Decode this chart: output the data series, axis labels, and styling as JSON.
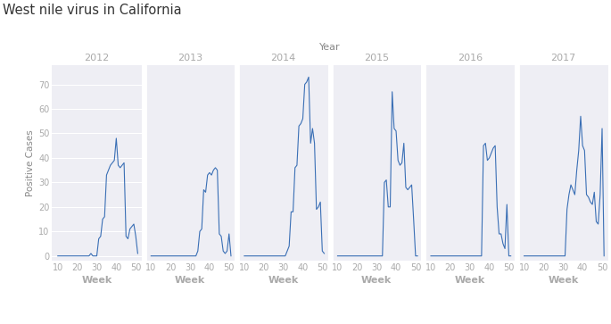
{
  "title": "West nile virus in California",
  "xlabel": "Year",
  "ylabel": "Positive Cases",
  "week_label": "Week",
  "background_color": "#eeeef4",
  "line_color": "#3a6fb5",
  "line_width": 0.8,
  "ylim": [
    -2,
    78
  ],
  "yticks": [
    0,
    10,
    20,
    30,
    40,
    50,
    60,
    70
  ],
  "xlim": [
    7,
    53
  ],
  "xticks": [
    10,
    20,
    30,
    40,
    50
  ],
  "years": [
    "2012",
    "2013",
    "2014",
    "2015",
    "2016",
    "2017"
  ],
  "data": {
    "2012": {
      "weeks": [
        10,
        11,
        12,
        13,
        14,
        15,
        16,
        17,
        18,
        19,
        20,
        21,
        22,
        23,
        24,
        25,
        26,
        27,
        28,
        29,
        30,
        31,
        32,
        33,
        34,
        35,
        36,
        37,
        38,
        39,
        40,
        41,
        42,
        43,
        44,
        45,
        46,
        47,
        48,
        49,
        50,
        51
      ],
      "cases": [
        0,
        0,
        0,
        0,
        0,
        0,
        0,
        0,
        0,
        0,
        0,
        0,
        0,
        0,
        0,
        0,
        0,
        1,
        0,
        0,
        0,
        7,
        8,
        15,
        16,
        33,
        35,
        37,
        38,
        39,
        48,
        37,
        36,
        37,
        38,
        8,
        7,
        11,
        12,
        13,
        8,
        1
      ]
    },
    "2013": {
      "weeks": [
        10,
        11,
        12,
        13,
        14,
        15,
        16,
        17,
        18,
        19,
        20,
        21,
        22,
        23,
        24,
        25,
        26,
        27,
        28,
        29,
        30,
        31,
        32,
        33,
        34,
        35,
        36,
        37,
        38,
        39,
        40,
        41,
        42,
        43,
        44,
        45,
        46,
        47,
        48,
        49,
        50,
        51
      ],
      "cases": [
        0,
        0,
        0,
        0,
        0,
        0,
        0,
        0,
        0,
        0,
        0,
        0,
        0,
        0,
        0,
        0,
        0,
        0,
        0,
        0,
        0,
        0,
        0,
        0,
        2,
        10,
        11,
        27,
        26,
        33,
        34,
        33,
        35,
        36,
        35,
        9,
        8,
        2,
        1,
        2,
        9,
        0
      ]
    },
    "2014": {
      "weeks": [
        10,
        11,
        12,
        13,
        14,
        15,
        16,
        17,
        18,
        19,
        20,
        21,
        22,
        23,
        24,
        25,
        26,
        27,
        28,
        29,
        30,
        31,
        32,
        33,
        34,
        35,
        36,
        37,
        38,
        39,
        40,
        41,
        42,
        43,
        44,
        45,
        46,
        47,
        48,
        49,
        50,
        51
      ],
      "cases": [
        0,
        0,
        0,
        0,
        0,
        0,
        0,
        0,
        0,
        0,
        0,
        0,
        0,
        0,
        0,
        0,
        0,
        0,
        0,
        0,
        0,
        0,
        2,
        4,
        18,
        18,
        36,
        37,
        53,
        54,
        56,
        70,
        71,
        73,
        46,
        52,
        46,
        19,
        20,
        22,
        2,
        1
      ]
    },
    "2015": {
      "weeks": [
        10,
        11,
        12,
        13,
        14,
        15,
        16,
        17,
        18,
        19,
        20,
        21,
        22,
        23,
        24,
        25,
        26,
        27,
        28,
        29,
        30,
        31,
        32,
        33,
        34,
        35,
        36,
        37,
        38,
        39,
        40,
        41,
        42,
        43,
        44,
        45,
        46,
        47,
        48,
        49,
        50,
        51
      ],
      "cases": [
        0,
        0,
        0,
        0,
        0,
        0,
        0,
        0,
        0,
        0,
        0,
        0,
        0,
        0,
        0,
        0,
        0,
        0,
        0,
        0,
        0,
        0,
        0,
        0,
        30,
        31,
        20,
        20,
        67,
        52,
        51,
        39,
        37,
        38,
        46,
        28,
        27,
        28,
        29,
        15,
        0,
        0
      ]
    },
    "2016": {
      "weeks": [
        10,
        11,
        12,
        13,
        14,
        15,
        16,
        17,
        18,
        19,
        20,
        21,
        22,
        23,
        24,
        25,
        26,
        27,
        28,
        29,
        30,
        31,
        32,
        33,
        34,
        35,
        36,
        37,
        38,
        39,
        40,
        41,
        42,
        43,
        44,
        45,
        46,
        47,
        48,
        49,
        50,
        51
      ],
      "cases": [
        0,
        0,
        0,
        0,
        0,
        0,
        0,
        0,
        0,
        0,
        0,
        0,
        0,
        0,
        0,
        0,
        0,
        0,
        0,
        0,
        0,
        0,
        0,
        0,
        0,
        0,
        0,
        45,
        46,
        39,
        40,
        42,
        44,
        45,
        20,
        9,
        9,
        5,
        3,
        21,
        0,
        0
      ]
    },
    "2017": {
      "weeks": [
        10,
        11,
        12,
        13,
        14,
        15,
        16,
        17,
        18,
        19,
        20,
        21,
        22,
        23,
        24,
        25,
        26,
        27,
        28,
        29,
        30,
        31,
        32,
        33,
        34,
        35,
        36,
        37,
        38,
        39,
        40,
        41,
        42,
        43,
        44,
        45,
        46,
        47,
        48,
        49,
        50,
        51
      ],
      "cases": [
        0,
        0,
        0,
        0,
        0,
        0,
        0,
        0,
        0,
        0,
        0,
        0,
        0,
        0,
        0,
        0,
        0,
        0,
        0,
        0,
        0,
        0,
        19,
        25,
        29,
        27,
        25,
        35,
        43,
        57,
        45,
        43,
        25,
        24,
        22,
        21,
        26,
        14,
        13,
        25,
        52,
        0
      ]
    }
  }
}
